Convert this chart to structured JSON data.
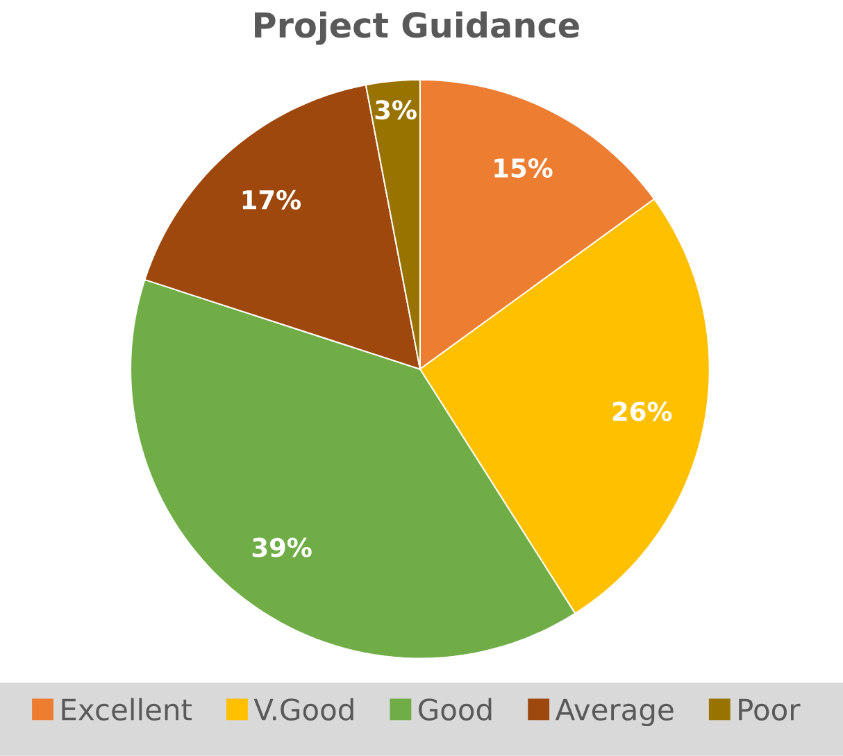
{
  "chart_data": {
    "type": "pie",
    "title": "Project Guidance",
    "categories": [
      "Excellent",
      "V.Good",
      "Good",
      "Average",
      "Poor"
    ],
    "values": [
      15,
      26,
      39,
      17,
      3
    ],
    "value_labels": [
      "15%",
      "26%",
      "39%",
      "17%",
      "3%"
    ],
    "colors": [
      "#ed7d31",
      "#ffc000",
      "#70ad47",
      "#9e480e",
      "#997300"
    ],
    "legend": "bottom"
  }
}
